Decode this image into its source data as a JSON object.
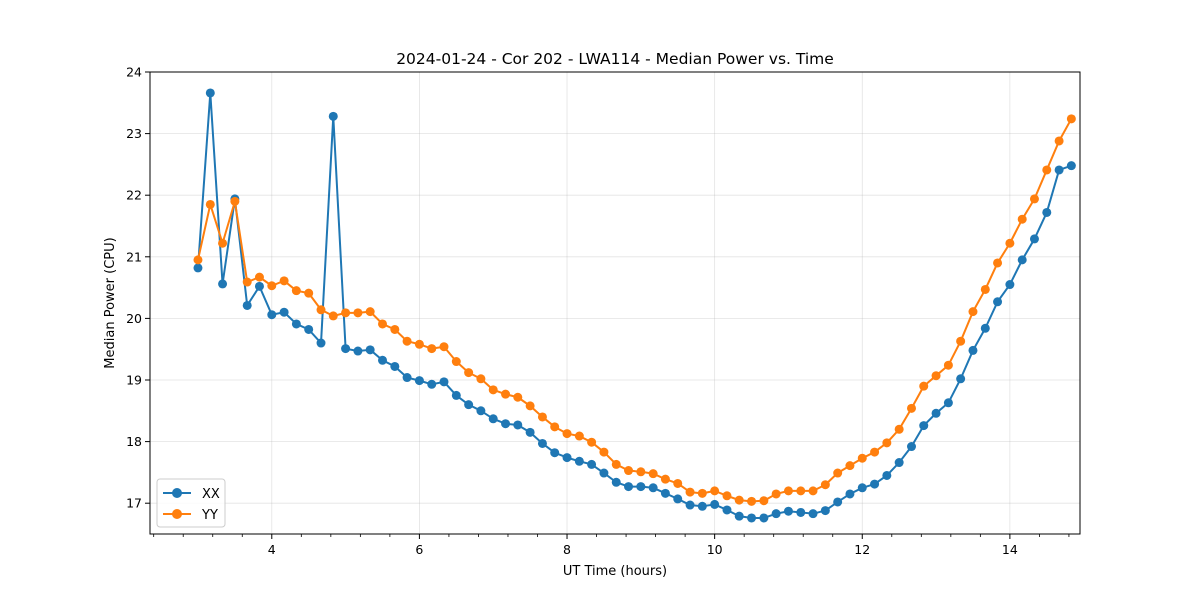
{
  "chart_data": {
    "type": "line",
    "title": "2024-01-24 - Cor 202 - LWA114 - Median Power vs. Time",
    "xlabel": "UT Time (hours)",
    "ylabel": "Median Power (CPU)",
    "xlim": [
      2.35,
      14.95
    ],
    "ylim": [
      16.5,
      24.0
    ],
    "xticks": [
      4,
      6,
      8,
      10,
      12,
      14
    ],
    "yticks": [
      17,
      18,
      19,
      20,
      21,
      22,
      23,
      24
    ],
    "grid": true,
    "legend_position": "lower-left",
    "colors": {
      "XX": "#1f77b4",
      "YY": "#ff7f0e"
    },
    "x": [
      3.0,
      3.167,
      3.333,
      3.5,
      3.667,
      3.833,
      4.0,
      4.167,
      4.333,
      4.5,
      4.667,
      4.833,
      5.0,
      5.167,
      5.333,
      5.5,
      5.667,
      5.833,
      6.0,
      6.167,
      6.333,
      6.5,
      6.667,
      6.833,
      7.0,
      7.167,
      7.333,
      7.5,
      7.667,
      7.833,
      8.0,
      8.167,
      8.333,
      8.5,
      8.667,
      8.833,
      9.0,
      9.167,
      9.333,
      9.5,
      9.667,
      9.833,
      10.0,
      10.167,
      10.333,
      10.5,
      10.667,
      10.833,
      11.0,
      11.167,
      11.333,
      11.5,
      11.667,
      11.833,
      12.0,
      12.167,
      12.333,
      12.5,
      12.667,
      12.833,
      13.0,
      13.167,
      13.333,
      13.5,
      13.667,
      13.833,
      14.0,
      14.167,
      14.333,
      14.5,
      14.667,
      14.833
    ],
    "series": [
      {
        "name": "XX",
        "values": [
          20.82,
          23.66,
          20.56,
          21.94,
          20.21,
          20.52,
          20.06,
          20.1,
          19.91,
          19.82,
          19.6,
          23.28,
          19.51,
          19.47,
          19.49,
          19.32,
          19.22,
          19.04,
          18.99,
          18.93,
          18.97,
          18.75,
          18.6,
          18.5,
          18.37,
          18.29,
          18.27,
          18.15,
          17.97,
          17.82,
          17.74,
          17.68,
          17.63,
          17.49,
          17.34,
          17.27,
          17.27,
          17.25,
          17.16,
          17.07,
          16.97,
          16.95,
          16.98,
          16.89,
          16.79,
          16.76,
          16.76,
          16.83,
          16.87,
          16.85,
          16.83,
          16.88,
          17.02,
          17.15,
          17.25,
          17.31,
          17.45,
          17.66,
          17.92,
          18.26,
          18.46,
          18.63,
          19.02,
          19.48,
          19.84,
          20.27,
          20.55,
          20.95,
          21.29,
          21.72,
          22.41,
          22.48
        ]
      },
      {
        "name": "YY",
        "values": [
          20.95,
          21.85,
          21.22,
          21.9,
          20.59,
          20.67,
          20.53,
          20.61,
          20.45,
          20.41,
          20.14,
          20.04,
          20.09,
          20.09,
          20.11,
          19.91,
          19.82,
          19.63,
          19.58,
          19.51,
          19.54,
          19.3,
          19.12,
          19.02,
          18.84,
          18.77,
          18.72,
          18.58,
          18.4,
          18.24,
          18.13,
          18.09,
          17.99,
          17.83,
          17.63,
          17.53,
          17.51,
          17.48,
          17.39,
          17.32,
          17.18,
          17.16,
          17.2,
          17.12,
          17.05,
          17.03,
          17.04,
          17.15,
          17.2,
          17.2,
          17.2,
          17.3,
          17.49,
          17.61,
          17.73,
          17.83,
          17.98,
          18.2,
          18.54,
          18.9,
          19.07,
          19.24,
          19.63,
          20.11,
          20.47,
          20.9,
          21.22,
          21.61,
          21.94,
          22.41,
          22.88,
          23.24
        ]
      }
    ]
  }
}
